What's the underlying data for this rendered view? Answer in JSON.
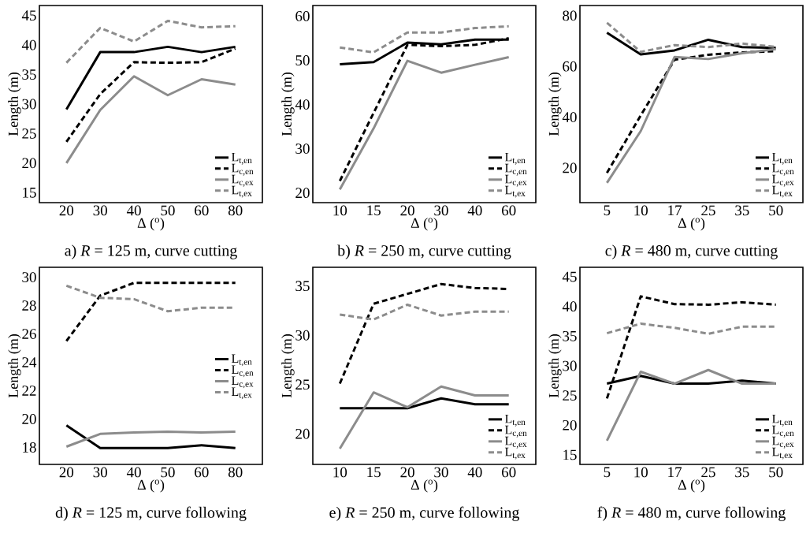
{
  "chart_data": [
    {
      "type": "line",
      "title": "a) *R* = 125 m, curve cutting",
      "xlabel": "Δ  ($^{o}$)",
      "ylabel": "Length (m)",
      "categories": [
        "20",
        "30",
        "40",
        "50",
        "60",
        "80"
      ],
      "ylim": [
        13.3,
        46.7
      ],
      "yticks": [
        15,
        20,
        25,
        30,
        35,
        40,
        45
      ],
      "legend": "bottom right",
      "series": [
        {
          "name": "L$_{t,en}$",
          "color": "#000000",
          "line_style": "solid",
          "values": [
            29.1,
            38.8,
            38.8,
            39.7,
            38.8,
            39.7
          ]
        },
        {
          "name": "L$_{c,en}$",
          "color": "#000000",
          "line_style": "dashed",
          "values": [
            23.6,
            31.7,
            37.1,
            37.0,
            37.1,
            39.4
          ]
        },
        {
          "name": "L$_{c,ex}$",
          "color": "#8c8c8c",
          "line_style": "solid",
          "values": [
            20.0,
            29.0,
            34.7,
            31.5,
            34.2,
            33.3
          ]
        },
        {
          "name": "L$_{t,ex}$",
          "color": "#8c8c8c",
          "line_style": "dashed",
          "values": [
            37.0,
            42.9,
            40.6,
            44.1,
            43.0,
            43.2
          ]
        }
      ]
    },
    {
      "type": "line",
      "title": "b) *R* = 250 m, curve cutting",
      "xlabel": "Δ  ($^{o}$)",
      "ylabel": "Length (m)",
      "categories": [
        "10",
        "15",
        "20",
        "30",
        "40",
        "60"
      ],
      "ylim": [
        17.8,
        62.4
      ],
      "yticks": [
        20,
        30,
        40,
        50,
        60
      ],
      "legend": "bottom right",
      "series": [
        {
          "name": "L$_{t,en}$",
          "color": "#000000",
          "line_style": "solid",
          "values": [
            49.1,
            49.6,
            54.0,
            53.6,
            54.7,
            54.7
          ]
        },
        {
          "name": "L$_{c,en}$",
          "color": "#000000",
          "line_style": "dashed",
          "values": [
            22.7,
            38.1,
            53.5,
            53.2,
            53.5,
            55.0
          ]
        },
        {
          "name": "L$_{c,ex}$",
          "color": "#8c8c8c",
          "line_style": "solid",
          "values": [
            20.8,
            34.6,
            49.9,
            47.2,
            49.0,
            50.7
          ]
        },
        {
          "name": "L$_{t,ex}$",
          "color": "#8c8c8c",
          "line_style": "dashed",
          "values": [
            52.9,
            51.8,
            56.3,
            56.3,
            57.3,
            57.7
          ]
        }
      ]
    },
    {
      "type": "line",
      "title": "c) *R* = 480 m, curve cutting",
      "xlabel": "Δ  ($^{o}$)",
      "ylabel": "Length (m)",
      "categories": [
        "5",
        "10",
        "17",
        "25",
        "35",
        "50"
      ],
      "ylim": [
        6.3,
        84
      ],
      "yticks": [
        20,
        40,
        60,
        80
      ],
      "legend": "bottom right",
      "series": [
        {
          "name": "L$_{t,en}$",
          "color": "#000000",
          "line_style": "solid",
          "values": [
            73.3,
            64.7,
            66.3,
            70.5,
            67.6,
            67.3
          ]
        },
        {
          "name": "L$_{c,en}$",
          "color": "#000000",
          "line_style": "dashed",
          "values": [
            18.0,
            40.7,
            62.6,
            64.6,
            65.5,
            66.0
          ]
        },
        {
          "name": "L$_{c,ex}$",
          "color": "#8c8c8c",
          "line_style": "solid",
          "values": [
            14.1,
            34.5,
            63.7,
            62.9,
            65.2,
            66.8
          ]
        },
        {
          "name": "L$_{t,ex}$",
          "color": "#8c8c8c",
          "line_style": "dashed",
          "values": [
            77.2,
            65.7,
            68.4,
            67.6,
            69.0,
            67.7
          ]
        }
      ]
    },
    {
      "type": "line",
      "title": "d) *R* = 125 m, curve following",
      "xlabel": "Δ  ($^{o}$)",
      "ylabel": "Length (m)",
      "categories": [
        "20",
        "30",
        "40",
        "50",
        "60",
        "80"
      ],
      "ylim": [
        16.8,
        30.7
      ],
      "yticks": [
        18,
        20,
        22,
        24,
        26,
        28,
        30
      ],
      "legend": "right",
      "series": [
        {
          "name": "L$_{t,en}$",
          "color": "#000000",
          "line_style": "solid",
          "values": [
            19.55,
            17.95,
            17.95,
            17.95,
            18.15,
            17.95
          ]
        },
        {
          "name": "L$_{c,en}$",
          "color": "#000000",
          "line_style": "dashed",
          "values": [
            25.5,
            28.7,
            29.6,
            29.6,
            29.6,
            29.6
          ]
        },
        {
          "name": "L$_{c,ex}$",
          "color": "#8c8c8c",
          "line_style": "solid",
          "values": [
            18.05,
            18.95,
            19.05,
            19.1,
            19.05,
            19.1
          ]
        },
        {
          "name": "L$_{t,ex}$",
          "color": "#8c8c8c",
          "line_style": "dashed",
          "values": [
            29.4,
            28.55,
            28.45,
            27.6,
            27.85,
            27.85
          ]
        }
      ]
    },
    {
      "type": "line",
      "title": "e) *R* = 250 m, curve following",
      "xlabel": "Δ  ($^{o}$)",
      "ylabel": "Length (m)",
      "categories": [
        "10",
        "15",
        "20",
        "30",
        "40",
        "60"
      ],
      "ylim": [
        16.9,
        36.9
      ],
      "yticks": [
        20,
        25,
        30,
        35
      ],
      "legend": "bottom right",
      "series": [
        {
          "name": "L$_{t,en}$",
          "color": "#000000",
          "line_style": "solid",
          "values": [
            22.6,
            22.6,
            22.6,
            23.6,
            23.0,
            23.0
          ]
        },
        {
          "name": "L$_{c,en}$",
          "color": "#000000",
          "line_style": "dashed",
          "values": [
            25.1,
            33.2,
            34.2,
            35.2,
            34.8,
            34.7
          ]
        },
        {
          "name": "L$_{c,ex}$",
          "color": "#8c8c8c",
          "line_style": "solid",
          "values": [
            18.5,
            24.2,
            22.7,
            24.8,
            23.9,
            23.9
          ]
        },
        {
          "name": "L$_{t,ex}$",
          "color": "#8c8c8c",
          "line_style": "dashed",
          "values": [
            32.1,
            31.6,
            33.1,
            32.0,
            32.4,
            32.4
          ]
        }
      ]
    },
    {
      "type": "line",
      "title": "f) *R* = 480 m, curve following",
      "xlabel": "Δ  ($^{o}$)",
      "ylabel": "Length (m)",
      "categories": [
        "5",
        "10",
        "17",
        "25",
        "35",
        "50"
      ],
      "ylim": [
        13.4,
        46.6
      ],
      "yticks": [
        15,
        20,
        25,
        30,
        35,
        40,
        45
      ],
      "legend": "bottom right",
      "series": [
        {
          "name": "L$_{t,en}$",
          "color": "#000000",
          "line_style": "solid",
          "values": [
            27.0,
            28.3,
            27.0,
            27.0,
            27.5,
            27.0
          ]
        },
        {
          "name": "L$_{c,en}$",
          "color": "#000000",
          "line_style": "dashed",
          "values": [
            24.5,
            41.7,
            40.4,
            40.3,
            40.7,
            40.3
          ]
        },
        {
          "name": "L$_{c,ex}$",
          "color": "#8c8c8c",
          "line_style": "solid",
          "values": [
            17.4,
            29.0,
            27.0,
            29.3,
            27.0,
            27.0
          ]
        },
        {
          "name": "L$_{t,ex}$",
          "color": "#8c8c8c",
          "line_style": "dashed",
          "values": [
            35.5,
            37.1,
            36.4,
            35.4,
            36.6,
            36.6
          ]
        }
      ]
    }
  ]
}
